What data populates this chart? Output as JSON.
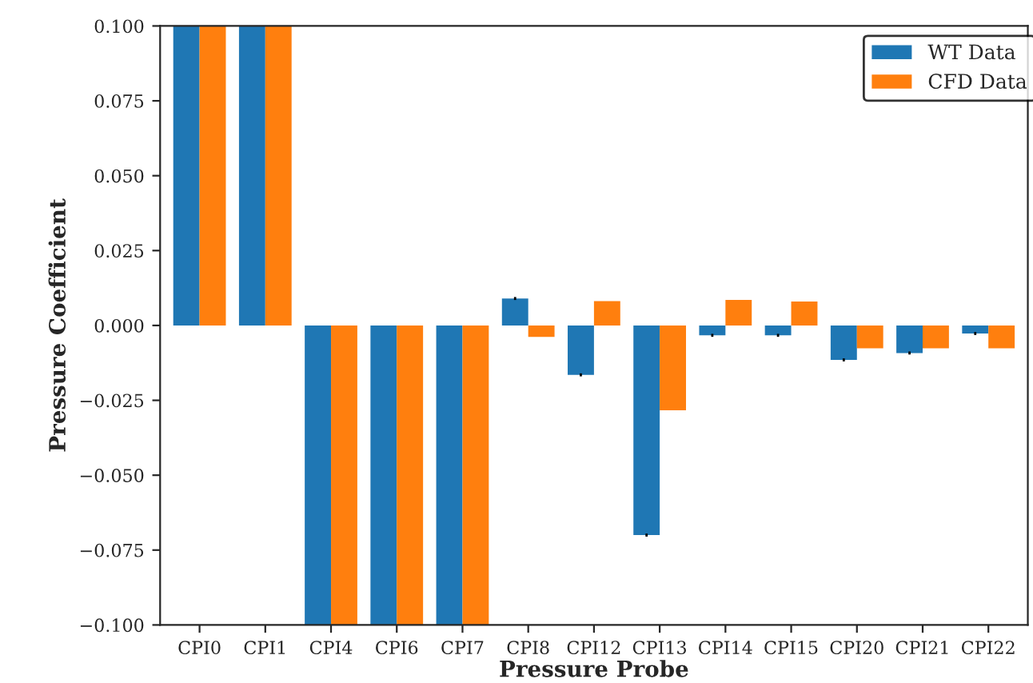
{
  "chart_data": {
    "type": "bar",
    "xlabel": "Pressure Probe",
    "ylabel": "Pressure Coefficient",
    "categories": [
      "CPI0",
      "CPI1",
      "CPI4",
      "CPI6",
      "CPI7",
      "CPI8",
      "CPI12",
      "CPI13",
      "CPI14",
      "CPI15",
      "CPI20",
      "CPI21",
      "CPI22"
    ],
    "series": [
      {
        "name": "WT Data",
        "color": "#1f77b4",
        "values": [
          0.1,
          0.1,
          -0.1,
          -0.1,
          -0.1,
          0.009,
          -0.0165,
          -0.07,
          -0.0033,
          -0.0033,
          -0.0115,
          -0.0092,
          -0.0027
        ],
        "errors": [
          null,
          null,
          null,
          null,
          null,
          0.0005,
          0.0005,
          0.0005,
          0.0005,
          0.0005,
          0.0005,
          0.0005,
          0.0005
        ]
      },
      {
        "name": "CFD Data",
        "color": "#ff7f0e",
        "values": [
          0.1,
          0.1,
          -0.1,
          -0.1,
          -0.1,
          -0.0038,
          0.0081,
          -0.0283,
          0.0085,
          0.008,
          -0.0076,
          -0.0076,
          -0.0076
        ]
      }
    ],
    "ylim": [
      -0.1,
      0.1
    ],
    "yticks": [
      {
        "value": -0.1,
        "label": "−0.100"
      },
      {
        "value": -0.075,
        "label": "−0.075"
      },
      {
        "value": -0.05,
        "label": "−0.050"
      },
      {
        "value": -0.025,
        "label": "−0.025"
      },
      {
        "value": 0,
        "label": "0.000"
      },
      {
        "value": 0.025,
        "label": "0.025"
      },
      {
        "value": 0.05,
        "label": "0.050"
      },
      {
        "value": 0.075,
        "label": "0.075"
      },
      {
        "value": 0.1,
        "label": "0.100"
      }
    ],
    "grid": false,
    "legend": "top right"
  }
}
